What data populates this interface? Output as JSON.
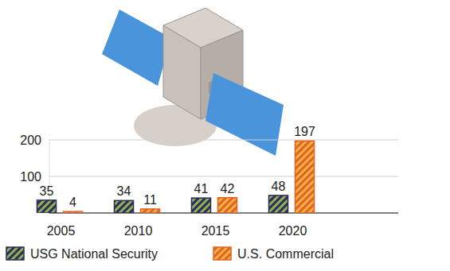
{
  "chart_data": {
    "type": "bar",
    "categories": [
      "2005",
      "2010",
      "2015",
      "2020"
    ],
    "series": [
      {
        "name": "USG National Security",
        "color": "#2d2b5f",
        "values": [
          35,
          34,
          41,
          48
        ]
      },
      {
        "name": "U.S. Commercial",
        "color": "#e0622a",
        "values": [
          4,
          11,
          42,
          197
        ]
      }
    ],
    "ylim": [
      0,
      200
    ],
    "yticks": [
      100,
      200
    ],
    "grid": true,
    "legend": "bottom",
    "data_labels": true
  }
}
